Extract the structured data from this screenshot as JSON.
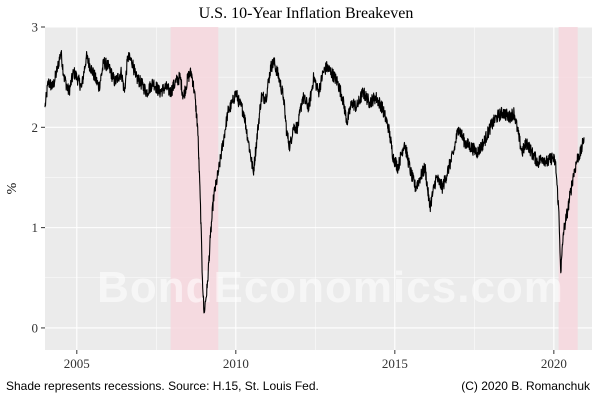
{
  "chart_data": {
    "type": "line",
    "title": "U.S. 10-Year Inflation Breakeven",
    "ylabel": "%",
    "xlabel": "",
    "xlim": [
      2004.0,
      2021.2
    ],
    "ylim": [
      -0.22,
      3.0
    ],
    "x_ticks": [
      2005,
      2010,
      2015,
      2020
    ],
    "y_ticks": [
      0,
      1,
      2,
      3
    ],
    "grid": true,
    "colors": {
      "panel": "#ebebeb",
      "grid": "#ffffff",
      "line": "#000000",
      "recession": "#f7d7de"
    },
    "recessions": [
      {
        "start": 2007.95,
        "end": 2009.45
      },
      {
        "start": 2020.15,
        "end": 2020.75
      }
    ],
    "series": [
      {
        "x": [
          2004.0,
          2004.1,
          2004.25,
          2004.4,
          2004.5,
          2004.6,
          2004.75,
          2004.9,
          2005.0,
          2005.15,
          2005.3,
          2005.5,
          2005.7,
          2005.85,
          2006.0,
          2006.2,
          2006.4,
          2006.5,
          2006.6,
          2006.75,
          2006.85,
          2007.0,
          2007.2,
          2007.4,
          2007.6,
          2007.8,
          2007.95,
          2008.1,
          2008.25,
          2008.35,
          2008.5,
          2008.6,
          2008.7,
          2008.8,
          2008.88,
          2008.95,
          2009.0,
          2009.1,
          2009.2,
          2009.3,
          2009.45,
          2009.6,
          2009.75,
          2009.9,
          2010.0,
          2010.1,
          2010.25,
          2010.4,
          2010.55,
          2010.7,
          2010.8,
          2010.95,
          2011.1,
          2011.2,
          2011.35,
          2011.5,
          2011.6,
          2011.7,
          2011.8,
          2011.95,
          2012.1,
          2012.3,
          2012.45,
          2012.6,
          2012.75,
          2012.85,
          2013.0,
          2013.2,
          2013.35,
          2013.5,
          2013.65,
          2013.8,
          2014.0,
          2014.2,
          2014.4,
          2014.6,
          2014.8,
          2014.95,
          2015.1,
          2015.3,
          2015.5,
          2015.65,
          2015.8,
          2015.95,
          2016.1,
          2016.3,
          2016.5,
          2016.7,
          2016.85,
          2017.0,
          2017.2,
          2017.4,
          2017.6,
          2017.8,
          2018.0,
          2018.2,
          2018.4,
          2018.6,
          2018.75,
          2018.9,
          2019.0,
          2019.15,
          2019.3,
          2019.5,
          2019.65,
          2019.8,
          2019.95,
          2020.05,
          2020.15,
          2020.22,
          2020.3,
          2020.45,
          2020.6,
          2020.75,
          2020.85,
          2020.95
        ],
        "values": [
          2.2,
          2.45,
          2.4,
          2.6,
          2.75,
          2.5,
          2.35,
          2.55,
          2.5,
          2.4,
          2.7,
          2.55,
          2.4,
          2.65,
          2.6,
          2.45,
          2.55,
          2.35,
          2.7,
          2.65,
          2.5,
          2.45,
          2.35,
          2.45,
          2.35,
          2.4,
          2.35,
          2.45,
          2.5,
          2.3,
          2.5,
          2.55,
          2.35,
          2.0,
          1.3,
          0.5,
          0.15,
          0.4,
          0.9,
          1.3,
          1.55,
          1.85,
          2.15,
          2.25,
          2.35,
          2.25,
          2.15,
          1.85,
          1.55,
          2.0,
          2.3,
          2.3,
          2.6,
          2.65,
          2.5,
          2.3,
          1.95,
          1.8,
          2.0,
          2.0,
          2.3,
          2.2,
          2.5,
          2.35,
          2.55,
          2.6,
          2.55,
          2.45,
          2.3,
          2.05,
          2.25,
          2.2,
          2.35,
          2.25,
          2.3,
          2.2,
          2.0,
          1.7,
          1.6,
          1.85,
          1.55,
          1.4,
          1.5,
          1.6,
          1.2,
          1.5,
          1.4,
          1.6,
          1.75,
          2.0,
          1.85,
          1.8,
          1.75,
          1.85,
          2.0,
          2.1,
          2.15,
          2.1,
          2.15,
          1.9,
          1.75,
          1.85,
          1.75,
          1.65,
          1.7,
          1.65,
          1.7,
          1.65,
          1.2,
          0.55,
          0.95,
          1.2,
          1.5,
          1.7,
          1.75,
          1.9
        ]
      }
    ]
  },
  "footer": {
    "left": "Shade represents recessions. Source: H.15, St. Louis Fed.",
    "right": "(C) 2020 B. Romanchuk"
  },
  "watermark": "BondEconomics.com"
}
